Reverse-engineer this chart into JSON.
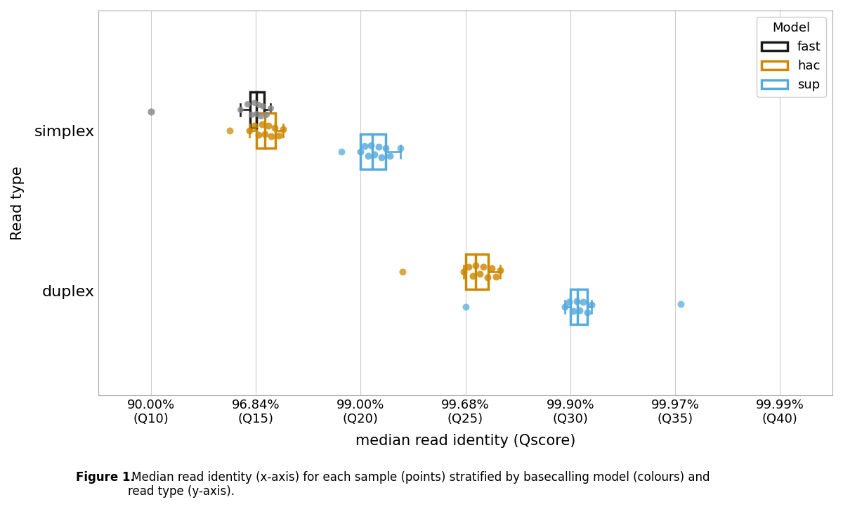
{
  "xlabel": "median read identity (Qscore)",
  "ylabel": "Read type",
  "background_color": "#ffffff",
  "xtick_labels": [
    "90.00%\n(Q10)",
    "96.84%\n(Q15)",
    "99.00%\n(Q20)",
    "99.68%\n(Q25)",
    "99.90%\n(Q30)",
    "99.97%\n(Q35)",
    "99.99%\n(Q40)"
  ],
  "ytick_positions": [
    1,
    2
  ],
  "ytick_labels": [
    "duplex",
    "simplex"
  ],
  "colors": {
    "fast": "#1a1a1a",
    "hac": "#cc8800",
    "sup": "#55aadd"
  },
  "figsize": [
    12.0,
    7.25
  ],
  "dpi": 100,
  "caption_bold": "Figure 1.",
  "caption_rest": " Median read identity (x-axis) for each sample (points) stratified by basecalling model (colours) and\nread type (y-axis)."
}
